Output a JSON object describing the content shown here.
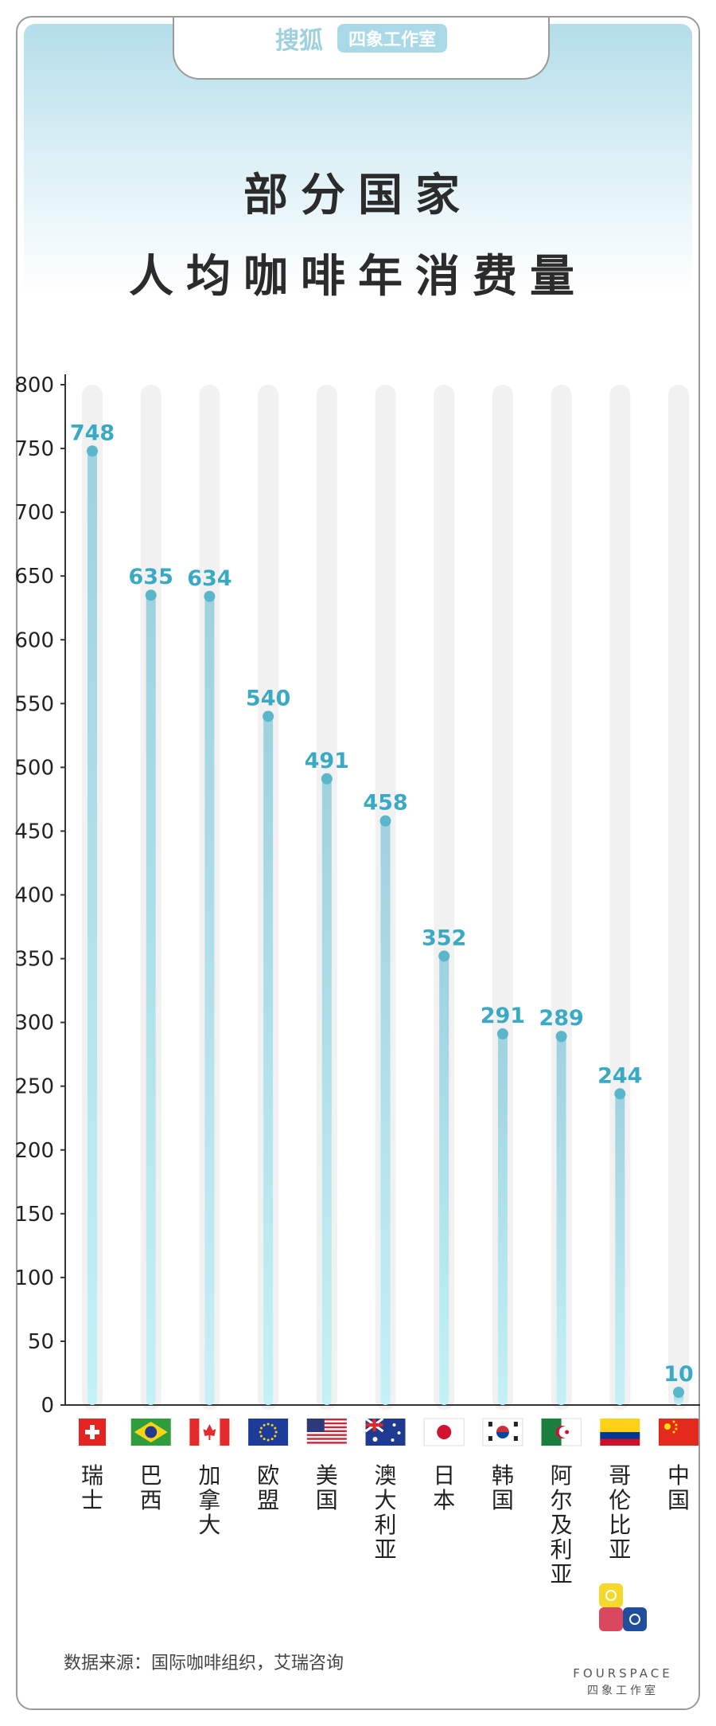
{
  "header": {
    "brand": "搜狐",
    "badge": "四象工作室",
    "title_line1": "部分国家",
    "title_line2": "人均咖啡年消费量"
  },
  "chart_data": {
    "type": "bar",
    "title": "部分国家人均咖啡年消费量",
    "xlabel": "",
    "ylabel": "",
    "ylim": [
      0,
      800
    ],
    "yticks": [
      0,
      50,
      100,
      150,
      200,
      250,
      300,
      350,
      400,
      450,
      500,
      550,
      600,
      650,
      700,
      750,
      800
    ],
    "categories": [
      "瑞士",
      "巴西",
      "加拿大",
      "欧盟",
      "美国",
      "澳大利亚",
      "日本",
      "韩国",
      "阿尔及利亚",
      "哥伦比亚",
      "中国"
    ],
    "values": [
      748,
      635,
      634,
      540,
      491,
      458,
      352,
      291,
      289,
      244,
      10
    ],
    "flags": [
      "switzerland-flag",
      "brazil-flag",
      "canada-flag",
      "eu-flag",
      "usa-flag",
      "australia-flag",
      "japan-flag",
      "korea-flag",
      "algeria-flag",
      "colombia-flag",
      "china-flag"
    ],
    "grid": false,
    "bar_color": "#a6d8e4",
    "label_color": "#3aaac4"
  },
  "footer": {
    "source": "数据来源：国际咖啡组织，艾瑞咨询",
    "logo_en": "FOURSPACE",
    "logo_cn": "四象工作室"
  }
}
